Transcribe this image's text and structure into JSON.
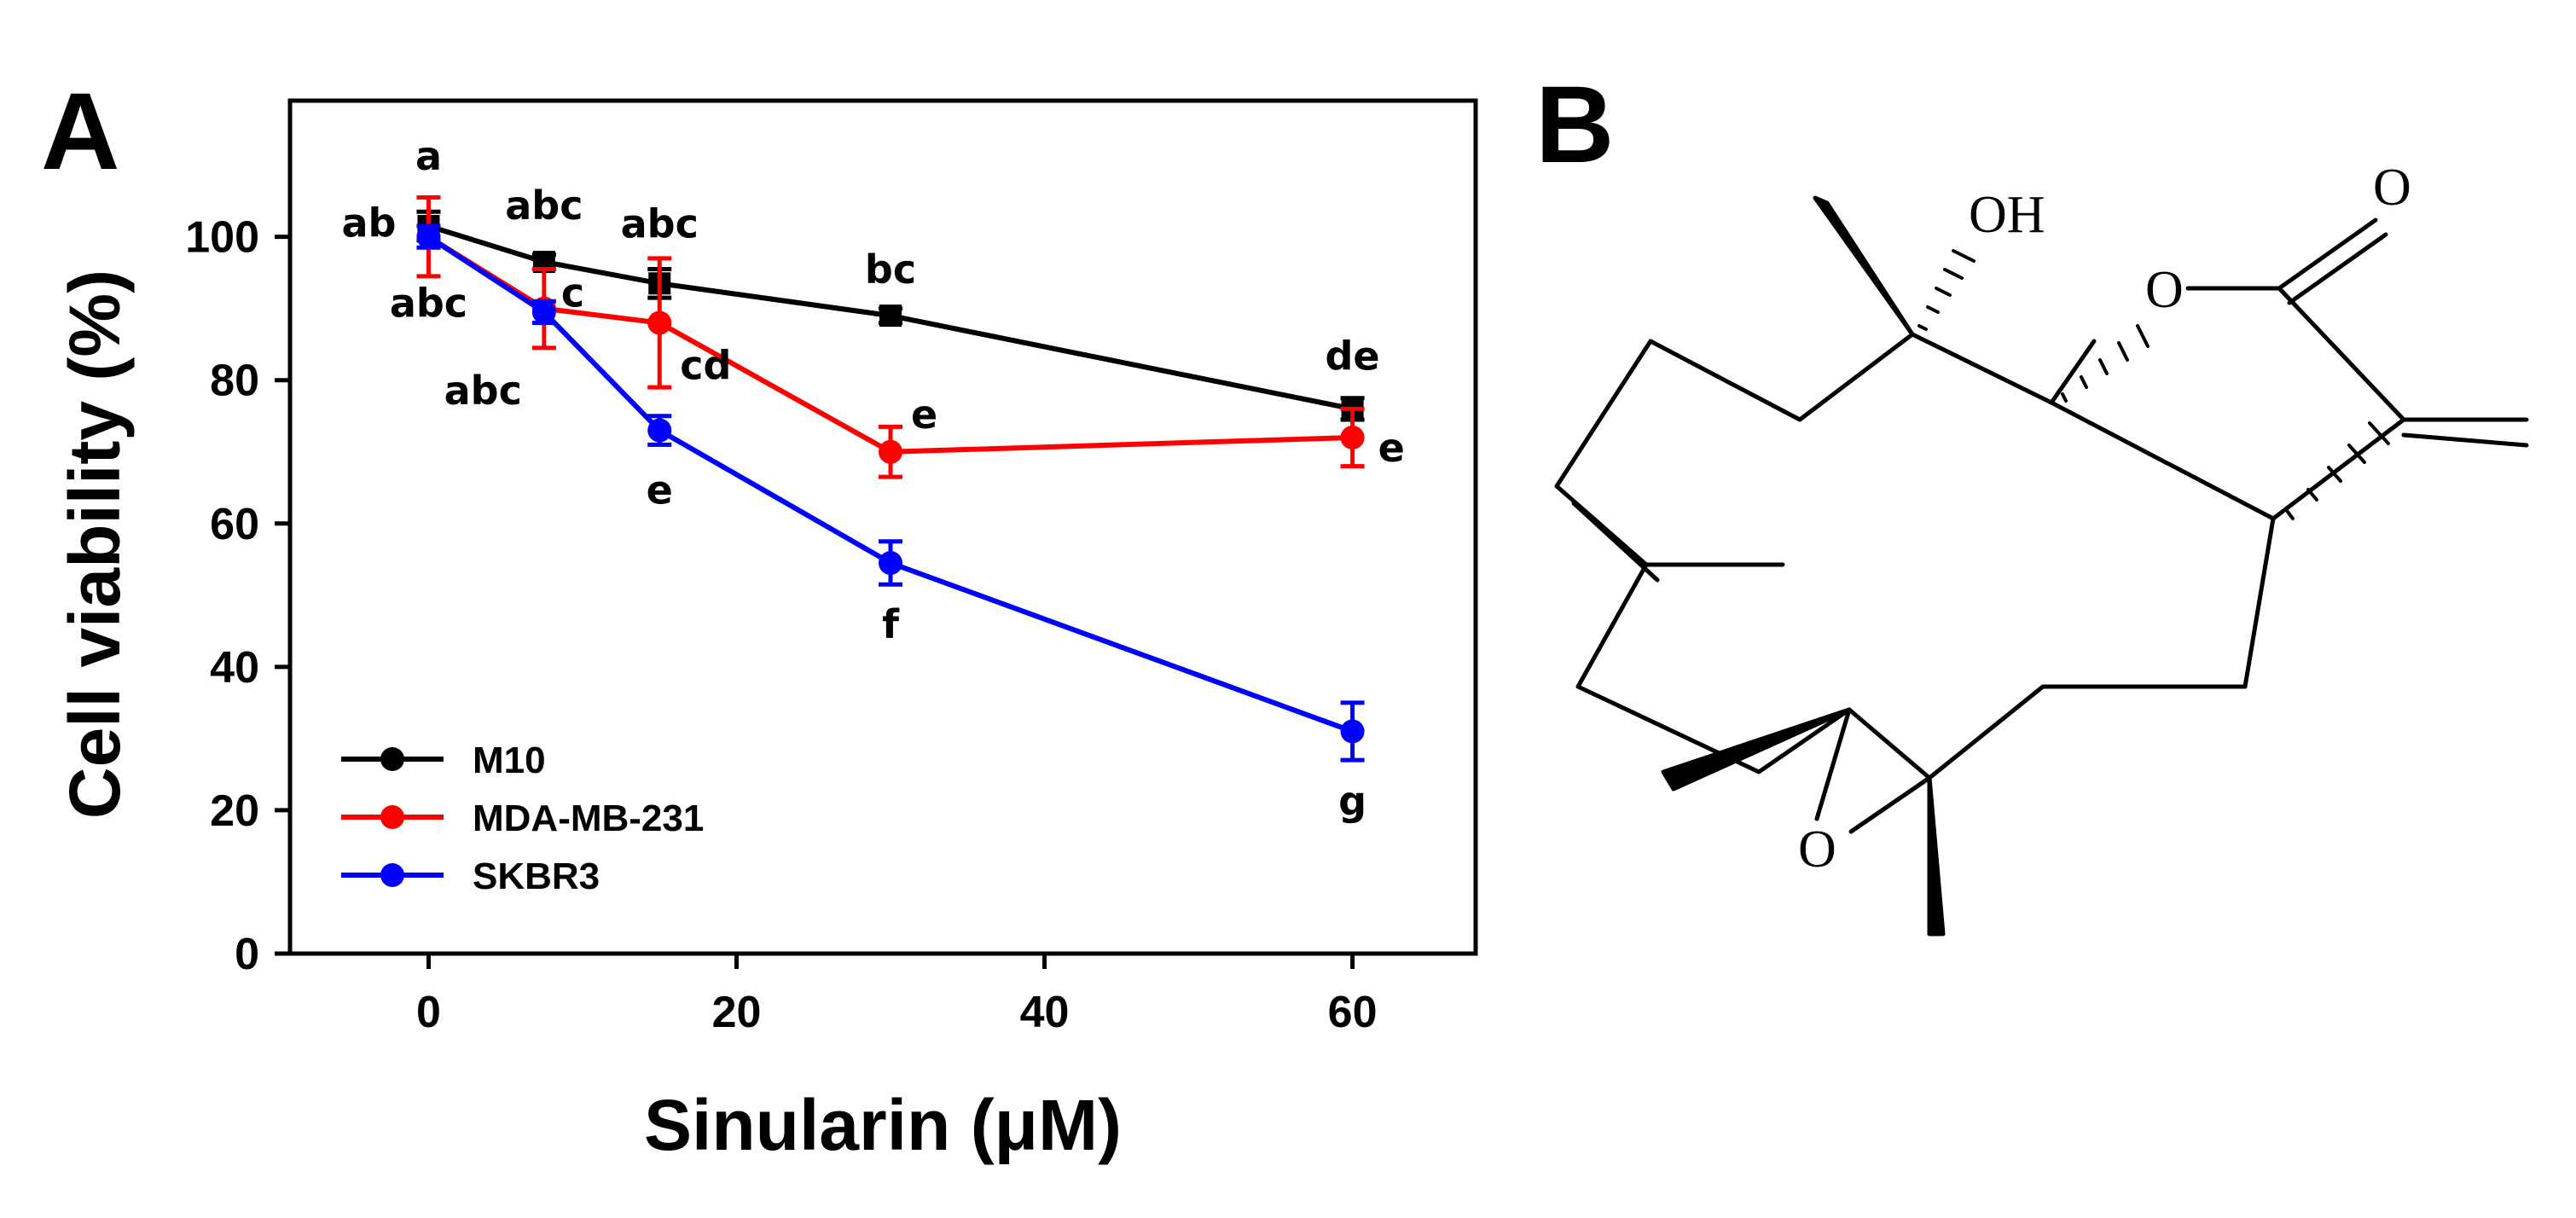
{
  "panels": {
    "a": "A",
    "b": "B"
  },
  "chart_data": {
    "type": "line",
    "xlabel": "Sinularin (μM)",
    "ylabel": "Cell viability (%)",
    "xlim": [
      -9,
      68
    ],
    "ylim": [
      0,
      119
    ],
    "xticks": [
      0,
      20,
      40,
      60
    ],
    "yticks": [
      0,
      20,
      40,
      60,
      80,
      100
    ],
    "legend_position": "lower-left",
    "grid": false,
    "series": [
      {
        "name": "M10",
        "color": "#000000",
        "marker": "square",
        "x": [
          0,
          7.5,
          15,
          30,
          60
        ],
        "y": [
          101.5,
          96.5,
          93.5,
          89,
          76
        ],
        "err": [
          2.0,
          1.0,
          2.0,
          1.0,
          1.5
        ],
        "labels": [
          "a",
          "abc",
          "abc",
          "bc",
          "de"
        ]
      },
      {
        "name": "MDA-MB-231",
        "color": "#ff0000",
        "marker": "circle",
        "x": [
          0,
          7.5,
          15,
          30,
          60
        ],
        "y": [
          100,
          90,
          88,
          70,
          72
        ],
        "err": [
          5.5,
          5.5,
          9.0,
          3.5,
          4.0
        ],
        "labels": [
          "ab",
          "c",
          "cd",
          "e",
          "e"
        ]
      },
      {
        "name": "SKBR3",
        "color": "#0000ff",
        "marker": "circle",
        "x": [
          0,
          7.5,
          15,
          30,
          60
        ],
        "y": [
          100,
          89.5,
          73,
          54.5,
          31
        ],
        "err": [
          1.5,
          1.5,
          2.0,
          3.0,
          4.0
        ],
        "labels": [
          "abc",
          "abc",
          "e",
          "f",
          "g"
        ]
      }
    ]
  },
  "structure": {
    "atoms": {
      "hydroxyl": "OH",
      "carbonyl": "O",
      "ester": "O",
      "epoxide": "O"
    }
  }
}
